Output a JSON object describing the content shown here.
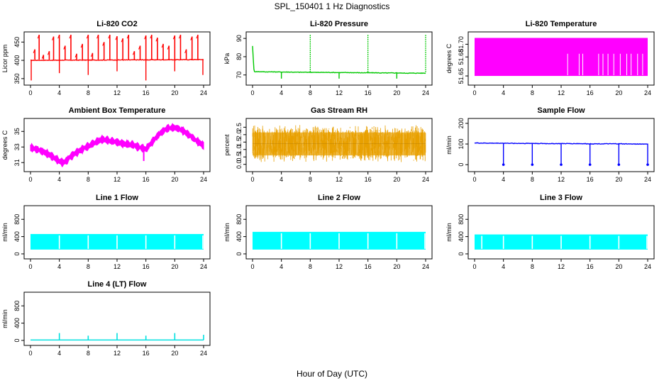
{
  "figure": {
    "title": "SPL_150401  1 Hz Diagnostics",
    "xlabel": "Hour of Day (UTC)"
  },
  "chart_data": [
    {
      "type": "line",
      "title": "Li-820 CO2",
      "ylabel": "Licor ppm",
      "xlim": [
        0,
        24
      ],
      "ylim": [
        340,
        470
      ],
      "color": "#ff0000",
      "xticks": [
        "0",
        "4",
        "8",
        "12",
        "16",
        "20",
        "24"
      ],
      "yticks": [
        "350",
        "400",
        "450"
      ],
      "series": [
        {
          "x": [
            0,
            24
          ],
          "y": [
            400,
            402
          ]
        }
      ],
      "spikes_x": [
        0.6,
        1.2,
        1.8,
        2.6,
        3.2,
        4.0,
        4.8,
        5.6,
        6.4,
        7.2,
        8.0,
        8.6,
        9.4,
        10.2,
        11.0,
        12.0,
        12.8,
        13.6,
        14.4,
        15.2,
        16.0,
        16.8,
        17.6,
        18.4,
        19.2,
        20.0,
        20.8,
        21.6,
        22.4,
        23.2
      ],
      "spikes_y": [
        430,
        470,
        415,
        425,
        465,
        470,
        440,
        470,
        418,
        445,
        470,
        420,
        470,
        450,
        470,
        466,
        460,
        470,
        425,
        440,
        468,
        470,
        462,
        445,
        440,
        468,
        470,
        430,
        465,
        470
      ],
      "dips_x": [
        0.1,
        4.0,
        8.0,
        12.0,
        16.0,
        20.0,
        23.9
      ],
      "dips_y": [
        345,
        365,
        360,
        370,
        345,
        370,
        360
      ]
    },
    {
      "type": "line",
      "title": "Li-820 Pressure",
      "ylabel": "kPa",
      "xlim": [
        0,
        24
      ],
      "ylim": [
        66,
        92
      ],
      "color": "#00c800",
      "xticks": [
        "0",
        "4",
        "8",
        "12",
        "16",
        "20",
        "24"
      ],
      "yticks": [
        "70",
        "80",
        "90"
      ],
      "series": [
        {
          "x": [
            0,
            0.2,
            0.4,
            1,
            2,
            3,
            4,
            5,
            6,
            7,
            8,
            9,
            10,
            11,
            12,
            13,
            14,
            15,
            16,
            17,
            18,
            19,
            20,
            21,
            22,
            23,
            24
          ],
          "y": [
            86,
            72,
            71.8,
            71.8,
            71.7,
            71.7,
            71.6,
            71.6,
            71.5,
            71.5,
            71.5,
            71.4,
            71.4,
            71.4,
            71.3,
            71.3,
            71.3,
            71.2,
            71.2,
            71.2,
            71.1,
            71.1,
            71.1,
            71.0,
            71.0,
            71.0,
            71.0
          ]
        }
      ],
      "spikes_x": [
        8,
        16,
        24
      ],
      "spikes_y": [
        92,
        92,
        92
      ],
      "dips_x": [
        4,
        12,
        20
      ],
      "dips_y": [
        68,
        68,
        68
      ]
    },
    {
      "type": "area",
      "title": "Li-820 Temperature",
      "ylabel": "degrees C",
      "xlim": [
        0,
        24
      ],
      "ylim": [
        51.64,
        51.715
      ],
      "color": "#ff00ff",
      "xticks": [
        "0",
        "4",
        "8",
        "12",
        "16",
        "20",
        "24"
      ],
      "yticks": [
        "51.65",
        "51.68",
        "51.70"
      ],
      "band_low": 51.65,
      "band_high": 51.71,
      "gap_x": [
        12.9,
        14.5,
        15.0,
        17.2,
        17.8,
        18.5,
        19.3,
        20.2,
        21.1,
        21.7,
        22.6,
        23.3
      ],
      "gap_top": 51.685
    },
    {
      "type": "line",
      "title": "Ambient Box Temperature",
      "ylabel": "degrees C",
      "xlim": [
        0,
        24
      ],
      "ylim": [
        30.2,
        36.3
      ],
      "color": "#ff00ff",
      "xticks": [
        "0",
        "4",
        "8",
        "12",
        "16",
        "20",
        "24"
      ],
      "yticks": [
        "31",
        "33",
        "35"
      ],
      "series": [
        {
          "x": [
            0,
            1,
            2,
            3,
            4,
            4.5,
            5,
            6,
            7,
            8,
            9,
            10,
            11,
            12,
            13,
            14,
            15,
            16,
            17,
            18,
            19,
            20,
            21,
            22,
            23,
            24
          ],
          "y": [
            32.9,
            32.7,
            32.3,
            31.8,
            31.2,
            31.0,
            31.3,
            32.1,
            32.6,
            33.1,
            33.6,
            34.0,
            33.8,
            33.6,
            33.4,
            33.3,
            33.0,
            32.7,
            33.8,
            34.8,
            35.4,
            35.5,
            35.2,
            34.5,
            33.8,
            33.2
          ]
        }
      ],
      "band": 0.35
    },
    {
      "type": "line",
      "title": "Gas Stream RH",
      "ylabel": "percent",
      "xlim": [
        0,
        24
      ],
      "ylim": [
        -0.3,
        2.9
      ],
      "color": "#e8a000",
      "xticks": [
        "0",
        "4",
        "8",
        "12",
        "16",
        "20",
        "24"
      ],
      "yticks": [
        "0.0",
        "0.5",
        "1.0",
        "1.5",
        "2.0",
        "2.5"
      ],
      "mean": 1.4,
      "spread_low": 0.0,
      "spread_high": 2.6
    },
    {
      "type": "line",
      "title": "Sample Flow",
      "ylabel": "ml/min",
      "xlim": [
        0,
        24
      ],
      "ylim": [
        -20,
        210
      ],
      "color": "#0000ff",
      "xticks": [
        "0",
        "4",
        "8",
        "12",
        "16",
        "20",
        "24"
      ],
      "yticks": [
        "0",
        "100",
        "200"
      ],
      "series": [
        {
          "x": [
            0,
            2,
            4,
            6,
            8,
            10,
            12,
            14,
            16,
            18,
            20,
            22,
            24
          ],
          "y": [
            105,
            104,
            104,
            103,
            103,
            102,
            102,
            102,
            101,
            101,
            101,
            100,
            100
          ]
        }
      ],
      "dips_x": [
        4,
        8,
        12,
        16,
        20,
        24
      ],
      "dips_y": [
        0,
        0,
        0,
        0,
        0,
        0
      ]
    },
    {
      "type": "area",
      "title": "Line 1 Flow",
      "ylabel": "ml/min",
      "xlim": [
        0,
        24
      ],
      "ylim": [
        -50,
        1050
      ],
      "color": "#00ffff",
      "xticks": [
        "0",
        "4",
        "8",
        "12",
        "16",
        "20",
        "24"
      ],
      "yticks": [
        "0",
        "400",
        "800"
      ],
      "band_low": 100,
      "band_high": 460,
      "gap_x": [
        4,
        8,
        12,
        16,
        20,
        23.9
      ]
    },
    {
      "type": "area",
      "title": "Line 2 Flow",
      "ylabel": "ml/min",
      "xlim": [
        0,
        24
      ],
      "ylim": [
        -50,
        1050
      ],
      "color": "#00ffff",
      "xticks": [
        "0",
        "4",
        "8",
        "12",
        "16",
        "20",
        "24"
      ],
      "yticks": [
        "0",
        "400",
        "800"
      ],
      "band_low": 100,
      "band_high": 510,
      "gap_x": [
        4,
        8,
        12,
        16,
        20,
        23.9
      ]
    },
    {
      "type": "area",
      "title": "Line 3 Flow",
      "ylabel": "ml/min",
      "xlim": [
        0,
        24
      ],
      "ylim": [
        -50,
        1050
      ],
      "color": "#00ffff",
      "xticks": [
        "0",
        "4",
        "8",
        "12",
        "16",
        "20",
        "24"
      ],
      "yticks": [
        "0",
        "400",
        "800"
      ],
      "band_low": 100,
      "band_high": 450,
      "gap_x": [
        1,
        4,
        8,
        12,
        16,
        20,
        23.9
      ]
    },
    {
      "type": "line",
      "title": "Line 4 (LT) Flow",
      "ylabel": "ml/min",
      "xlim": [
        0,
        24
      ],
      "ylim": [
        -50,
        1050
      ],
      "color": "#00e0e0",
      "xticks": [
        "0",
        "4",
        "8",
        "12",
        "16",
        "20",
        "24"
      ],
      "yticks": [
        "0",
        "400",
        "800"
      ],
      "series": [
        {
          "x": [
            0,
            24
          ],
          "y": [
            10,
            10
          ]
        }
      ],
      "spikes_x": [
        4,
        8,
        12,
        16,
        20,
        24
      ],
      "spikes_y": [
        170,
        110,
        170,
        110,
        170,
        130
      ]
    }
  ]
}
